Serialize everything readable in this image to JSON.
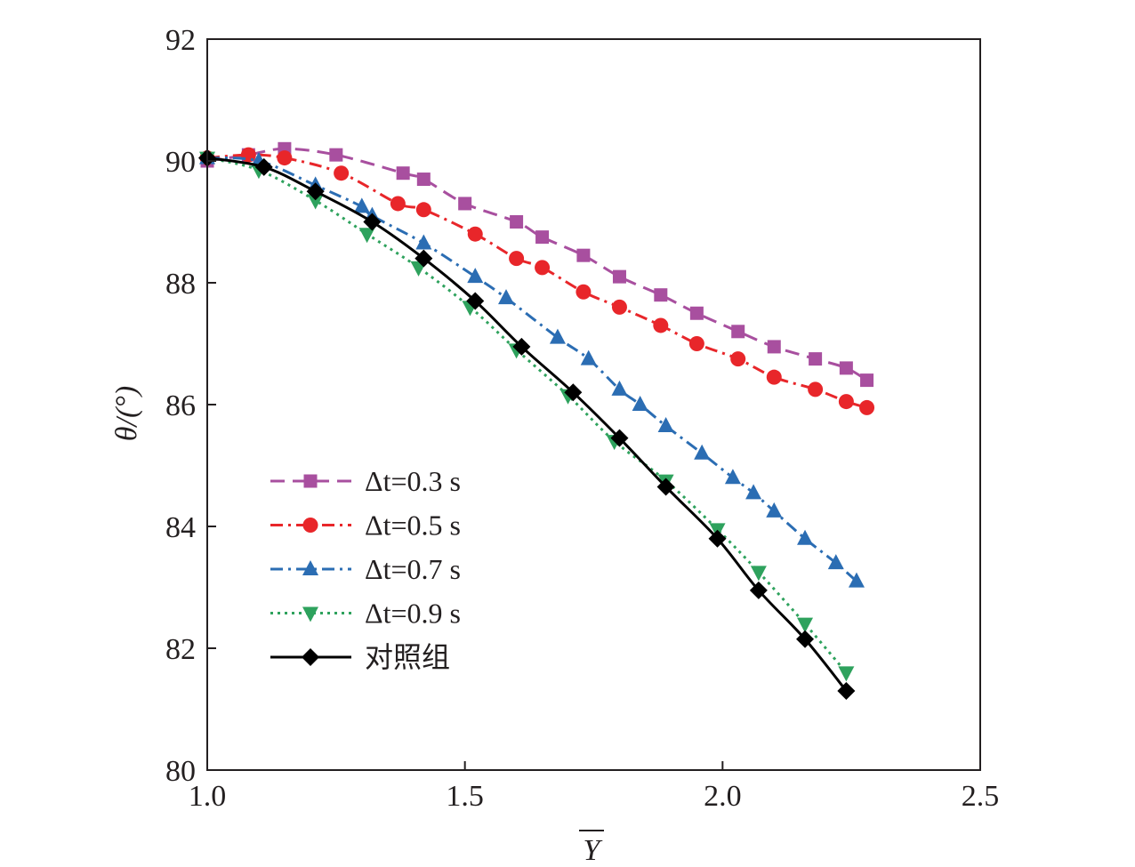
{
  "chart_data": {
    "type": "line",
    "title": "",
    "xlabel": "Y",
    "xlabel_overline": true,
    "ylabel": "θ/(°)",
    "xlim": [
      1.0,
      2.5
    ],
    "ylim": [
      80,
      92
    ],
    "xticks": [
      "1.0",
      "1.5",
      "2.0",
      "2.5"
    ],
    "yticks": [
      "80",
      "82",
      "84",
      "86",
      "88",
      "90",
      "92"
    ],
    "xtick_values": [
      1.0,
      1.5,
      2.0,
      2.5
    ],
    "ytick_values": [
      80,
      82,
      84,
      86,
      88,
      90,
      92
    ],
    "grid": false,
    "legend_position": "lower-left",
    "series": [
      {
        "name": "Δt=0.3 s",
        "color": "#a84f9f",
        "marker": "square",
        "dash": "dashed",
        "x": [
          1.0,
          1.08,
          1.15,
          1.25,
          1.38,
          1.42,
          1.5,
          1.6,
          1.65,
          1.73,
          1.8,
          1.88,
          1.95,
          2.03,
          2.1,
          2.18,
          2.24,
          2.28
        ],
        "y": [
          90.0,
          90.1,
          90.2,
          90.1,
          89.8,
          89.7,
          89.3,
          89.0,
          88.75,
          88.45,
          88.1,
          87.8,
          87.5,
          87.2,
          86.95,
          86.75,
          86.6,
          86.4
        ]
      },
      {
        "name": "Δt=0.5 s",
        "color": "#e8262a",
        "marker": "circle",
        "dash": "dashdot",
        "x": [
          1.0,
          1.08,
          1.15,
          1.26,
          1.37,
          1.42,
          1.52,
          1.6,
          1.65,
          1.73,
          1.8,
          1.88,
          1.95,
          2.03,
          2.1,
          2.18,
          2.24,
          2.28
        ],
        "y": [
          90.05,
          90.1,
          90.05,
          89.8,
          89.3,
          89.2,
          88.8,
          88.4,
          88.25,
          87.85,
          87.6,
          87.3,
          87.0,
          86.75,
          86.45,
          86.25,
          86.05,
          85.95
        ]
      },
      {
        "name": "Δt=0.7 s",
        "color": "#2b6db3",
        "marker": "triangle-up",
        "dash": "dashdot",
        "x": [
          1.0,
          1.1,
          1.21,
          1.3,
          1.32,
          1.42,
          1.52,
          1.58,
          1.68,
          1.74,
          1.8,
          1.84,
          1.89,
          1.96,
          2.02,
          2.06,
          2.1,
          2.16,
          2.22,
          2.26
        ],
        "y": [
          90.05,
          90.0,
          89.6,
          89.25,
          89.1,
          88.65,
          88.1,
          87.75,
          87.1,
          86.75,
          86.25,
          86.0,
          85.65,
          85.2,
          84.8,
          84.55,
          84.25,
          83.8,
          83.4,
          83.1
        ]
      },
      {
        "name": "Δt=0.9 s",
        "color": "#2ea25d",
        "marker": "triangle-down",
        "dash": "dotted",
        "x": [
          1.0,
          1.1,
          1.21,
          1.31,
          1.41,
          1.51,
          1.6,
          1.7,
          1.79,
          1.89,
          1.99,
          2.07,
          2.16,
          2.24
        ],
        "y": [
          90.05,
          89.85,
          89.35,
          88.8,
          88.25,
          87.6,
          86.9,
          86.15,
          85.4,
          84.75,
          83.95,
          83.25,
          82.4,
          81.6
        ]
      },
      {
        "name": "对照组",
        "color": "#000000",
        "marker": "diamond",
        "dash": "solid",
        "x": [
          1.0,
          1.11,
          1.21,
          1.32,
          1.42,
          1.52,
          1.61,
          1.71,
          1.8,
          1.89,
          1.99,
          2.07,
          2.16,
          2.24
        ],
        "y": [
          90.05,
          89.9,
          89.5,
          89.0,
          88.4,
          87.7,
          86.95,
          86.2,
          85.45,
          84.65,
          83.8,
          82.95,
          82.15,
          81.3
        ]
      }
    ]
  }
}
